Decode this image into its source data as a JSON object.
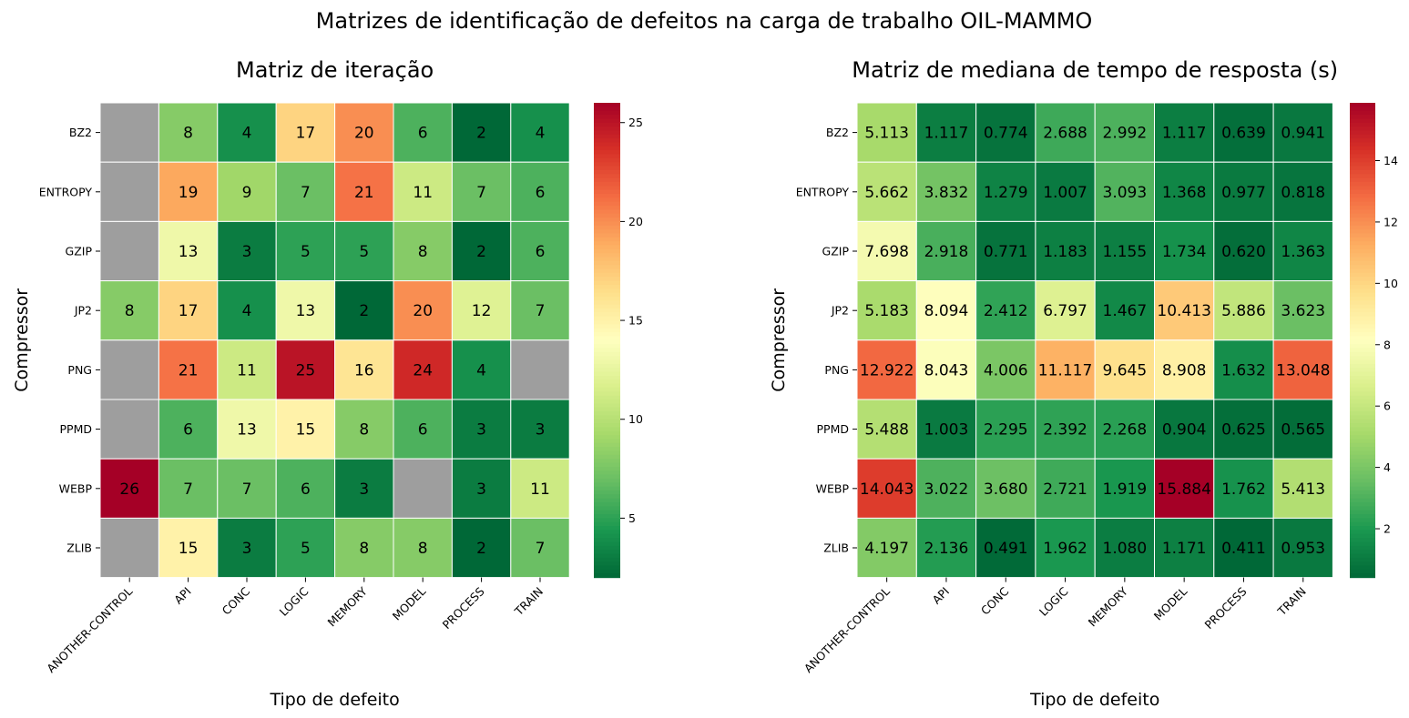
{
  "suptitle": "Matrizes de identificação de defeitos na carga de trabalho OIL-MAMMO",
  "colors": {
    "missing": "#9e9e9e",
    "colormap": "RdYlGn_r",
    "grid_lines": "#ffffff"
  },
  "chart_data": [
    {
      "type": "heatmap",
      "title": "Matriz de iteração",
      "xlabel": "Tipo de defeito",
      "ylabel": "Compressor",
      "x_categories": [
        "ANOTHER-CONTROL",
        "API",
        "CONC",
        "LOGIC",
        "MEMORY",
        "MODEL",
        "PROCESS",
        "TRAIN"
      ],
      "y_categories": [
        "BZ2",
        "ENTROPY",
        "GZIP",
        "JP2",
        "PNG",
        "PPMD",
        "WEBP",
        "ZLIB"
      ],
      "value_labels": [
        [
          "",
          "8",
          "4",
          "17",
          "20",
          "6",
          "2",
          "4"
        ],
        [
          "",
          "19",
          "9",
          "7",
          "21",
          "11",
          "7",
          "6"
        ],
        [
          "",
          "13",
          "3",
          "5",
          "5",
          "8",
          "2",
          "6"
        ],
        [
          "8",
          "17",
          "4",
          "13",
          "2",
          "20",
          "12",
          "7"
        ],
        [
          "",
          "21",
          "11",
          "25",
          "16",
          "24",
          "4",
          ""
        ],
        [
          "",
          "6",
          "13",
          "15",
          "8",
          "6",
          "3",
          "3"
        ],
        [
          "26",
          "7",
          "7",
          "6",
          "3",
          "",
          "3",
          "11"
        ],
        [
          "",
          "15",
          "3",
          "5",
          "8",
          "8",
          "2",
          "7"
        ]
      ],
      "values": [
        [
          null,
          8,
          4,
          17,
          20,
          6,
          2,
          4
        ],
        [
          null,
          19,
          9,
          7,
          21,
          11,
          7,
          6
        ],
        [
          null,
          13,
          3,
          5,
          5,
          8,
          2,
          6
        ],
        [
          8,
          17,
          4,
          13,
          2,
          20,
          12,
          7
        ],
        [
          null,
          21,
          11,
          25,
          16,
          24,
          4,
          null
        ],
        [
          null,
          6,
          13,
          15,
          8,
          6,
          3,
          3
        ],
        [
          26,
          7,
          7,
          6,
          3,
          null,
          3,
          11
        ],
        [
          null,
          15,
          3,
          5,
          8,
          8,
          2,
          7
        ]
      ],
      "vmin": 2,
      "vmax": 26,
      "colorbar_ticks": [
        5,
        10,
        15,
        20,
        25
      ],
      "colorbar_tick_labels": [
        "5",
        "10",
        "15",
        "20",
        "25"
      ]
    },
    {
      "type": "heatmap",
      "title": "Matriz de mediana de tempo de resposta (s)",
      "xlabel": "Tipo de defeito",
      "ylabel": "Compressor",
      "x_categories": [
        "ANOTHER-CONTROL",
        "API",
        "CONC",
        "LOGIC",
        "MEMORY",
        "MODEL",
        "PROCESS",
        "TRAIN"
      ],
      "y_categories": [
        "BZ2",
        "ENTROPY",
        "GZIP",
        "JP2",
        "PNG",
        "PPMD",
        "WEBP",
        "ZLIB"
      ],
      "value_labels": [
        [
          "5.113",
          "1.117",
          "0.774",
          "2.688",
          "2.992",
          "1.117",
          "0.639",
          "0.941"
        ],
        [
          "5.662",
          "3.832",
          "1.279",
          "1.007",
          "3.093",
          "1.368",
          "0.977",
          "0.818"
        ],
        [
          "7.698",
          "2.918",
          "0.771",
          "1.183",
          "1.155",
          "1.734",
          "0.620",
          "1.363"
        ],
        [
          "5.183",
          "8.094",
          "2.412",
          "6.797",
          "1.467",
          "10.413",
          "5.886",
          "3.623"
        ],
        [
          "12.922",
          "8.043",
          "4.006",
          "11.117",
          "9.645",
          "8.908",
          "1.632",
          "13.048"
        ],
        [
          "5.488",
          "1.003",
          "2.295",
          "2.392",
          "2.268",
          "0.904",
          "0.625",
          "0.565"
        ],
        [
          "14.043",
          "3.022",
          "3.680",
          "2.721",
          "1.919",
          "15.884",
          "1.762",
          "5.413"
        ],
        [
          "4.197",
          "2.136",
          "0.491",
          "1.962",
          "1.080",
          "1.171",
          "0.411",
          "0.953"
        ]
      ],
      "values": [
        [
          5.113,
          1.117,
          0.774,
          2.688,
          2.992,
          1.117,
          0.639,
          0.941
        ],
        [
          5.662,
          3.832,
          1.279,
          1.007,
          3.093,
          1.368,
          0.977,
          0.818
        ],
        [
          7.698,
          2.918,
          0.771,
          1.183,
          1.155,
          1.734,
          0.62,
          1.363
        ],
        [
          5.183,
          8.094,
          2.412,
          6.797,
          1.467,
          10.413,
          5.886,
          3.623
        ],
        [
          12.922,
          8.043,
          4.006,
          11.117,
          9.645,
          8.908,
          1.632,
          13.048
        ],
        [
          5.488,
          1.003,
          2.295,
          2.392,
          2.268,
          0.904,
          0.625,
          0.565
        ],
        [
          14.043,
          3.022,
          3.68,
          2.721,
          1.919,
          15.884,
          1.762,
          5.413
        ],
        [
          4.197,
          2.136,
          0.491,
          1.962,
          1.08,
          1.171,
          0.411,
          0.953
        ]
      ],
      "vmin": 0.411,
      "vmax": 15.884,
      "colorbar_ticks": [
        2,
        4,
        6,
        8,
        10,
        12,
        14
      ],
      "colorbar_tick_labels": [
        "2",
        "4",
        "6",
        "8",
        "10",
        "12",
        "14"
      ]
    }
  ]
}
